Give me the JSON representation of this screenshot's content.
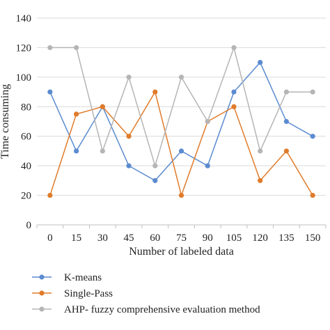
{
  "chart_data": {
    "type": "line",
    "title": "",
    "xlabel": "Number of labeled data",
    "ylabel": "Time consuming",
    "categories": [
      "0",
      "15",
      "30",
      "45",
      "60",
      "75",
      "90",
      "105",
      "120",
      "135",
      "150"
    ],
    "ylim": [
      0,
      140
    ],
    "yticks": [
      "0",
      "20",
      "40",
      "60",
      "80",
      "100",
      "120",
      "140"
    ],
    "grid": "horizontal",
    "legend_position": "bottom",
    "series": [
      {
        "name": "K-means",
        "color": "#5b8bd0",
        "values": [
          90,
          50,
          80,
          40,
          30,
          50,
          40,
          90,
          110,
          70,
          60
        ]
      },
      {
        "name": "Single-Pass",
        "color": "#e07b2a",
        "values": [
          20,
          75,
          80,
          60,
          90,
          20,
          70,
          80,
          30,
          50,
          20
        ]
      },
      {
        "name": "AHP- fuzzy comprehensive evaluation method",
        "color": "#b5b5b5",
        "values": [
          120,
          120,
          50,
          100,
          40,
          100,
          70,
          120,
          50,
          90,
          90
        ]
      }
    ]
  }
}
